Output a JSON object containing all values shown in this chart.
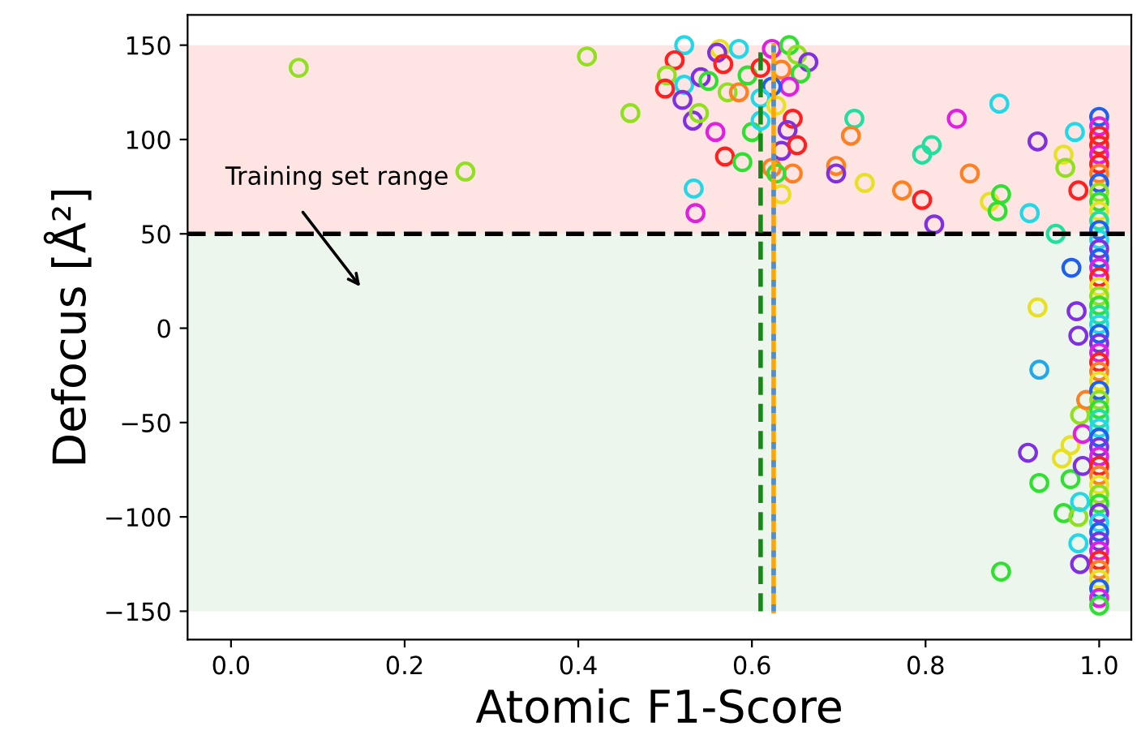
{
  "chart_data": {
    "type": "scatter",
    "xlabel": "Atomic F1-Score",
    "ylabel": "Defocus [Å²]",
    "marker": "circle",
    "grid": false,
    "xlim": [
      -0.05,
      1.037
    ],
    "ylim": [
      -165,
      166
    ],
    "xticks": [
      {
        "value": 0,
        "label": "0.0"
      },
      {
        "value": 0.2,
        "label": "0.2"
      },
      {
        "value": 0.4,
        "label": "0.4"
      },
      {
        "value": 0.6,
        "label": "0.6"
      },
      {
        "value": 0.8,
        "label": "0.8"
      },
      {
        "value": 1,
        "label": "1.0"
      }
    ],
    "yticks": [
      {
        "value": -150,
        "label": "−150"
      },
      {
        "value": -100,
        "label": "−100"
      },
      {
        "value": -50,
        "label": "−50"
      },
      0,
      50,
      100,
      150
    ],
    "bands": [
      {
        "axis": "y",
        "from": 50,
        "to": 150,
        "color": "#ffb3b3"
      },
      {
        "axis": "y",
        "from": -150,
        "to": 50,
        "color": "#c8e6c8"
      }
    ],
    "ref_lines": [
      {
        "axis": "y",
        "value": 50,
        "color": "#000000",
        "line_style": "dashed"
      },
      {
        "axis": "x",
        "value": 0.61,
        "color": "#138a13",
        "line_style": "dashed"
      },
      {
        "axis": "x",
        "value": 0.625,
        "color": "#ffa500",
        "line_style": "solid"
      },
      {
        "axis": "x",
        "value": 0.625,
        "color": "#4a90d9",
        "line_style": "dotted"
      }
    ],
    "annotations": [
      "Training set range"
    ],
    "x": [
      0.078,
      0.41,
      0.46,
      0.27,
      0.522,
      0.511,
      0.502,
      0.5,
      0.522,
      0.52,
      0.532,
      0.539,
      0.558,
      0.569,
      0.589,
      0.533,
      0.535,
      0.563,
      0.585,
      0.56,
      0.567,
      0.541,
      0.55,
      0.572,
      0.585,
      0.595,
      0.61,
      0.623,
      0.643,
      0.652,
      0.665,
      0.656,
      0.634,
      0.643,
      0.623,
      0.61,
      0.628,
      0.647,
      0.641,
      0.6,
      0.634,
      0.652,
      0.623,
      0.647,
      0.634,
      0.628,
      0.61,
      0.718,
      0.714,
      0.697,
      0.697,
      0.73,
      0.773,
      0.796,
      0.796,
      0.807,
      0.81,
      0.836,
      0.851,
      0.885,
      0.929,
      0.874,
      0.887,
      0.883,
      0.92,
      0.959,
      0.972,
      0.961,
      0.976,
      0.95,
      0.968,
      0.929,
      0.974,
      0.976,
      0.931,
      0.918,
      0.967,
      0.957,
      0.931,
      0.967,
      0.981,
      0.959,
      0.976,
      0.978,
      0.976,
      0.978,
      0.887,
      0.978,
      0.985,
      0.981,
      1,
      1,
      1,
      1,
      1,
      1,
      1,
      1,
      1,
      1,
      1,
      1,
      1,
      1,
      1,
      1,
      1,
      1,
      1,
      1,
      1,
      1,
      1,
      1,
      1,
      1,
      1,
      1,
      1,
      1,
      1,
      1,
      1,
      1,
      1,
      1,
      1,
      1,
      1,
      1,
      1,
      1,
      1,
      1,
      1,
      1,
      1,
      1,
      1,
      1,
      1,
      1,
      1
    ],
    "values": [
      138,
      144,
      114,
      83,
      150,
      142,
      134,
      127,
      129,
      121,
      110,
      114,
      104,
      91,
      88,
      74,
      61,
      148,
      148,
      146,
      140,
      133,
      131,
      125,
      125,
      134,
      138,
      148,
      150,
      145,
      141,
      135,
      137,
      128,
      128,
      122,
      118,
      111,
      105,
      104,
      94,
      97,
      85,
      82,
      71,
      82,
      110,
      111,
      102,
      86,
      82,
      77,
      73,
      68,
      92,
      97,
      55,
      111,
      82,
      119,
      99,
      67,
      71,
      62,
      61,
      92,
      104,
      85,
      73,
      50,
      32,
      11,
      9,
      -4,
      -22,
      -66,
      -62,
      -69,
      -82,
      -80,
      -73,
      -98,
      -100,
      -92,
      -114,
      -125,
      -129,
      -46,
      -38,
      -56,
      112,
      107,
      102,
      97,
      92,
      87,
      82,
      77,
      72,
      67,
      62,
      57,
      52,
      47,
      42,
      37,
      32,
      27,
      22,
      17,
      12,
      7,
      2,
      -3,
      -8,
      -13,
      -18,
      -23,
      -28,
      -33,
      -38,
      -43,
      -48,
      -53,
      -58,
      -63,
      -68,
      -73,
      -78,
      -83,
      -88,
      -93,
      -98,
      -103,
      -108,
      -113,
      -118,
      -123,
      -128,
      -133,
      -138,
      -143,
      -147
    ],
    "colors": [
      "#90e020",
      "#90e020",
      "#90e020",
      "#90e020",
      "#20d8e8",
      "#ff2020",
      "#90e020",
      "#ff2020",
      "#20d8e8",
      "#8030e0",
      "#8030e0",
      "#90e020",
      "#e020e0",
      "#ff2020",
      "#30e030",
      "#20d8e8",
      "#e020e0",
      "#e8e020",
      "#20d8e8",
      "#8030e0",
      "#ff2020",
      "#8030e0",
      "#30e030",
      "#90e020",
      "#ff8020",
      "#30e030",
      "#ff2020",
      "#e020e0",
      "#30e030",
      "#90e020",
      "#8030e0",
      "#30e030",
      "#ff8020",
      "#e020e0",
      "#2060f0",
      "#20d8e8",
      "#e8e020",
      "#ff2020",
      "#8030e0",
      "#30e030",
      "#8030e0",
      "#ff2020",
      "#ff8020",
      "#ff8020",
      "#e8e020",
      "#30e030",
      "#20d8e8",
      "#20e0a0",
      "#ff8020",
      "#ff8020",
      "#8030e0",
      "#e8e020",
      "#ff8020",
      "#ff2020",
      "#20e0a0",
      "#20e0a0",
      "#8030e0",
      "#e020e0",
      "#ff8020",
      "#20d8e8",
      "#8030e0",
      "#e8e020",
      "#30e030",
      "#30e030",
      "#20d8e8",
      "#e8e020",
      "#20d8e8",
      "#90e020",
      "#ff2020",
      "#20e0a0",
      "#2060f0",
      "#e8e020",
      "#8030e0",
      "#8030e0",
      "#20a8e8",
      "#8030e0",
      "#e8e020",
      "#e8e020",
      "#30e030",
      "#30e030",
      "#8030e0",
      "#30e030",
      "#90e020",
      "#20d8e8",
      "#20d8e8",
      "#8030e0",
      "#30e030",
      "#90e020",
      "#ff8020",
      "#e020e0",
      "#2060f0",
      "#e020e0",
      "#ff2020",
      "#ff2020",
      "#e020e0",
      "#ff2020",
      "#ff8020",
      "#2060f0",
      "#90e020",
      "#30e030",
      "#e8e020",
      "#20e0a0",
      "#2060f0",
      "#20d8e8",
      "#8030e0",
      "#2060f0",
      "#e020e0",
      "#ff2020",
      "#e8e020",
      "#90e020",
      "#30e030",
      "#20e0a0",
      "#20d8e8",
      "#2060f0",
      "#8030e0",
      "#e020e0",
      "#ff2020",
      "#ff8020",
      "#e8e020",
      "#2060f0",
      "#90e020",
      "#30e030",
      "#20e0a0",
      "#20d8e8",
      "#2060f0",
      "#8030e0",
      "#e020e0",
      "#ff2020",
      "#ff8020",
      "#e8e020",
      "#90e020",
      "#30e030",
      "#8030e0",
      "#20d8e8",
      "#2060f0",
      "#8030e0",
      "#e020e0",
      "#ff2020",
      "#ff8020",
      "#e8e020",
      "#2060f0",
      "#e020e0",
      "#30e030"
    ]
  }
}
